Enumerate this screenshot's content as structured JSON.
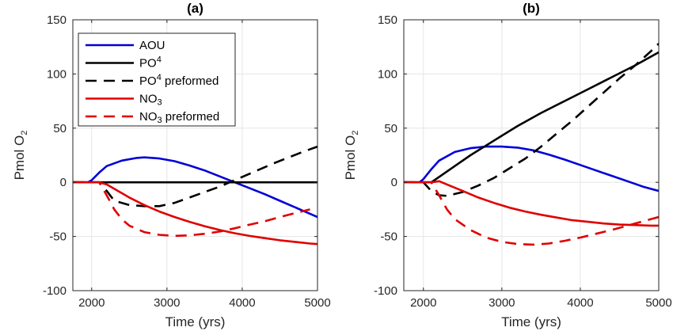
{
  "chart_data": [
    {
      "type": "line",
      "title": "(a)",
      "xlabel": "Time (yrs)",
      "ylabel": "Pmol O",
      "ylabel_sub": "2",
      "xlim": [
        1750,
        5000
      ],
      "ylim": [
        -100,
        150
      ],
      "xticks": [
        2000,
        3000,
        4000,
        5000
      ],
      "yticks": [
        -100,
        -50,
        0,
        50,
        100,
        150
      ],
      "xticklabels": [
        "2000",
        "3000",
        "4000",
        "5000"
      ],
      "yticklabels": [
        "-100",
        "-50",
        "0",
        "50",
        "100",
        "150"
      ],
      "grid": true,
      "legend": {
        "location": "top-left",
        "entries": [
          {
            "series": 0,
            "label": "AOU",
            "sup": ""
          },
          {
            "series": 1,
            "label": "PO",
            "sup": "4"
          },
          {
            "series": 2,
            "label": "PO",
            "sup": "4",
            "suffix": " preformed"
          },
          {
            "series": 3,
            "label": "NO",
            "sub": "3"
          },
          {
            "series": 4,
            "label": "NO",
            "sub": "3",
            "suffix": " preformed"
          }
        ]
      },
      "series": [
        {
          "name": "AOU",
          "color": "#0000d8",
          "dash": "solid",
          "x": [
            1750,
            1950,
            2000,
            2100,
            2200,
            2400,
            2600,
            2700,
            2900,
            3100,
            3300,
            3500,
            3700,
            3900,
            4100,
            4300,
            4500,
            4700,
            4900,
            5000
          ],
          "y": [
            0,
            0,
            2,
            9,
            15,
            20,
            22.5,
            23,
            22,
            19.5,
            15.5,
            11,
            5.5,
            0,
            -5.5,
            -11,
            -17,
            -23,
            -29,
            -32
          ]
        },
        {
          "name": "PO4",
          "color": "#000000",
          "dash": "solid",
          "x": [
            1750,
            5000
          ],
          "y": [
            0,
            0
          ]
        },
        {
          "name": "PO4 preformed",
          "color": "#000000",
          "dash": "dashed",
          "x": [
            1750,
            2100,
            2200,
            2300,
            2500,
            2700,
            2900,
            3100,
            3300,
            3500,
            3700,
            3800,
            4000,
            4200,
            4400,
            4600,
            4800,
            5000
          ],
          "y": [
            0,
            0,
            -8,
            -17,
            -21,
            -22,
            -22,
            -19,
            -14,
            -9,
            -4,
            -1,
            5,
            11,
            17,
            22.5,
            28,
            33
          ]
        },
        {
          "name": "NO3",
          "color": "#e00000",
          "dash": "solid",
          "x": [
            1750,
            2100,
            2200,
            2300,
            2400,
            2500,
            2700,
            2900,
            3100,
            3300,
            3500,
            3700,
            3900,
            4100,
            4300,
            4500,
            4700,
            4900,
            5000
          ],
          "y": [
            0,
            0,
            -2,
            -6,
            -10,
            -14,
            -21,
            -27,
            -32,
            -36.5,
            -40.5,
            -44,
            -47,
            -49.5,
            -51.5,
            -53.5,
            -55,
            -56.5,
            -57
          ]
        },
        {
          "name": "NO3 preformed",
          "color": "#e00000",
          "dash": "dashed",
          "x": [
            1750,
            2100,
            2200,
            2300,
            2400,
            2500,
            2700,
            2900,
            3100,
            3300,
            3500,
            3700,
            3900,
            4100,
            4300,
            4500,
            4700,
            4900
          ],
          "y": [
            0,
            0,
            -12,
            -25,
            -34,
            -40,
            -46,
            -48.5,
            -49.5,
            -49,
            -47.5,
            -45.5,
            -42.5,
            -39,
            -36,
            -32,
            -28.5,
            -25
          ]
        }
      ]
    },
    {
      "type": "line",
      "title": "(b)",
      "xlabel": "Time (yrs)",
      "ylabel": "Pmol O",
      "ylabel_sub": "2",
      "xlim": [
        1750,
        5000
      ],
      "ylim": [
        -100,
        150
      ],
      "xticks": [
        2000,
        3000,
        4000,
        5000
      ],
      "yticks": [
        -100,
        -50,
        0,
        50,
        100,
        150
      ],
      "xticklabels": [
        "2000",
        "3000",
        "4000",
        "5000"
      ],
      "yticklabels": [
        "-100",
        "-50",
        "0",
        "50",
        "100",
        "150"
      ],
      "grid": true,
      "series": [
        {
          "name": "AOU",
          "color": "#0000d8",
          "dash": "solid",
          "x": [
            1750,
            1950,
            2000,
            2100,
            2200,
            2400,
            2600,
            2800,
            3000,
            3200,
            3400,
            3600,
            3800,
            4000,
            4200,
            4400,
            4600,
            4800,
            5000
          ],
          "y": [
            0,
            0,
            3,
            12,
            20,
            28,
            31.5,
            33,
            33,
            32,
            29.5,
            25.5,
            21,
            16,
            11,
            6,
            1,
            -4,
            -8
          ]
        },
        {
          "name": "PO4",
          "color": "#000000",
          "dash": "solid",
          "x": [
            1750,
            2100,
            2200,
            2400,
            2600,
            2800,
            3000,
            3200,
            3500,
            3800,
            4100,
            4400,
            4700,
            5000
          ],
          "y": [
            0,
            0,
            5,
            15,
            25,
            34,
            43,
            52,
            64,
            75,
            86,
            97,
            108,
            120
          ]
        },
        {
          "name": "PO4 preformed",
          "color": "#000000",
          "dash": "dashed",
          "x": [
            1750,
            2000,
            2100,
            2200,
            2300,
            2500,
            2700,
            2900,
            3100,
            3300,
            3500,
            3700,
            3900,
            4100,
            4300,
            4500,
            4700,
            4900,
            5000
          ],
          "y": [
            0,
            0,
            -8,
            -12,
            -12.5,
            -9,
            -3,
            4,
            13,
            22,
            33,
            45,
            57,
            70,
            83,
            96,
            108,
            121,
            128
          ]
        },
        {
          "name": "NO3",
          "color": "#e00000",
          "dash": "solid",
          "x": [
            1750,
            2100,
            2200,
            2300,
            2500,
            2700,
            2900,
            3100,
            3300,
            3500,
            3700,
            3900,
            4100,
            4300,
            4500,
            4700,
            4900,
            5000
          ],
          "y": [
            0,
            0,
            1,
            -2,
            -8,
            -14,
            -19,
            -23.5,
            -27,
            -30,
            -32.5,
            -35,
            -36.5,
            -38,
            -39,
            -39.5,
            -40,
            -40
          ]
        },
        {
          "name": "NO3 preformed",
          "color": "#e00000",
          "dash": "dashed",
          "x": [
            1750,
            2100,
            2200,
            2300,
            2400,
            2600,
            2800,
            3000,
            3200,
            3400,
            3600,
            3800,
            4000,
            4200,
            4400,
            4600,
            4800,
            5000
          ],
          "y": [
            0,
            0,
            -12,
            -25,
            -34,
            -44,
            -51,
            -55,
            -57,
            -57.5,
            -56.5,
            -54,
            -51,
            -47.5,
            -44,
            -40,
            -36,
            -32
          ]
        }
      ]
    }
  ]
}
